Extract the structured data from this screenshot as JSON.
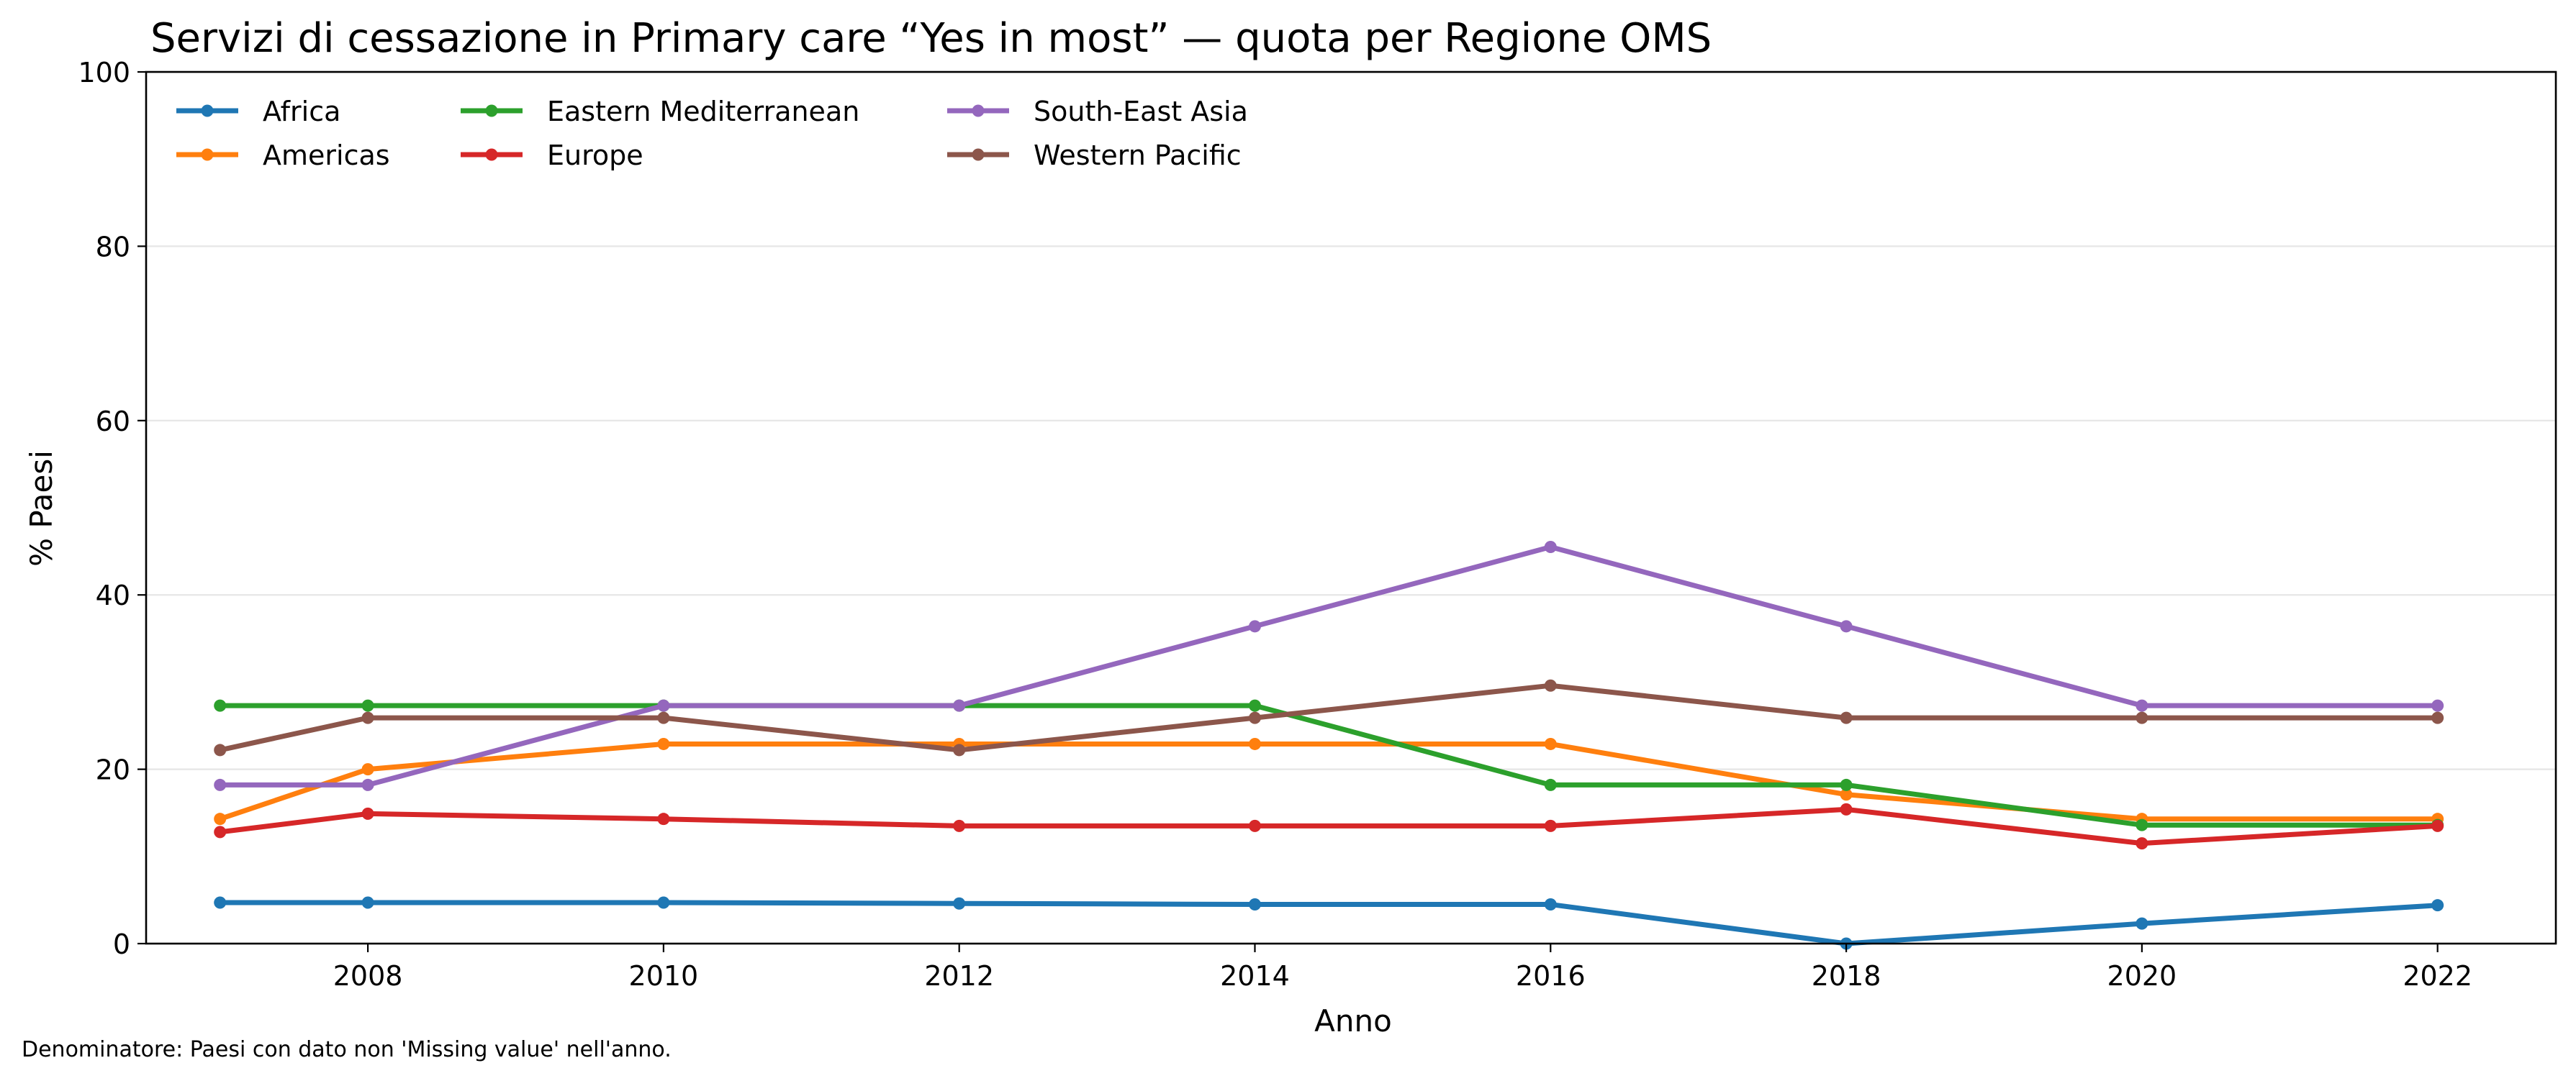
{
  "chart_data": {
    "type": "line",
    "title": "Servizi di cessazione in Primary care “Yes in most” — quota per Regione OMS",
    "xlabel": "Anno",
    "ylabel": "% Paesi",
    "footnote": "Denominatore: Paesi con dato non 'Missing value' nell'anno.",
    "x": [
      2007,
      2008,
      2010,
      2012,
      2014,
      2016,
      2018,
      2020,
      2022
    ],
    "xlim": [
      2006.5,
      2022.8
    ],
    "ylim": [
      0,
      100
    ],
    "xticks": [
      2008,
      2010,
      2012,
      2014,
      2016,
      2018,
      2020,
      2022
    ],
    "yticks": [
      0,
      20,
      40,
      60,
      80,
      100
    ],
    "grid": "horizontal",
    "legend": "upper-left",
    "series": [
      {
        "name": "Africa",
        "color": "#1f77b4",
        "values": [
          4.7,
          4.7,
          4.7,
          4.6,
          4.5,
          4.5,
          0.0,
          2.3,
          4.4
        ]
      },
      {
        "name": "Americas",
        "color": "#ff7f0e",
        "values": [
          14.3,
          20.0,
          22.9,
          22.9,
          22.9,
          22.9,
          17.1,
          14.3,
          14.3
        ]
      },
      {
        "name": "Eastern Mediterranean",
        "color": "#2ca02c",
        "values": [
          27.3,
          27.3,
          27.3,
          27.3,
          27.3,
          18.2,
          18.2,
          13.6,
          13.6
        ]
      },
      {
        "name": "Europe",
        "color": "#d62728",
        "values": [
          12.8,
          14.9,
          14.3,
          13.5,
          13.5,
          13.5,
          15.4,
          11.5,
          13.5
        ]
      },
      {
        "name": "South-East Asia",
        "color": "#9467bd",
        "values": [
          18.2,
          18.2,
          27.3,
          27.3,
          36.4,
          45.5,
          36.4,
          27.3,
          27.3
        ]
      },
      {
        "name": "Western Pacific",
        "color": "#8c564b",
        "values": [
          22.2,
          25.9,
          25.9,
          22.2,
          25.9,
          29.6,
          25.9,
          25.9,
          25.9
        ]
      }
    ]
  }
}
